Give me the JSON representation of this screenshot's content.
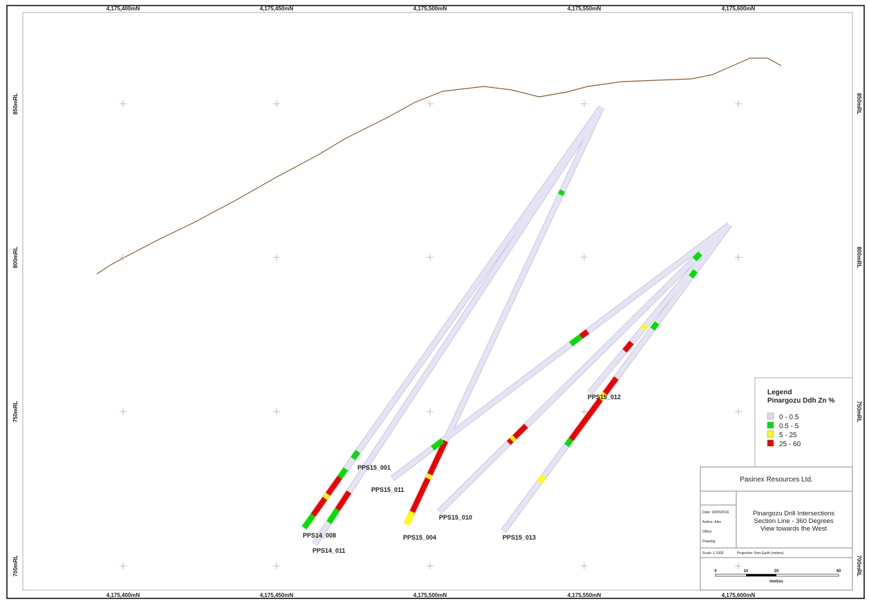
{
  "grid": {
    "top_labels": [
      "4,175,400mN",
      "4,175,450mN",
      "4,175,500mN",
      "4,175,550mN",
      "4,175,600mN"
    ],
    "bottom_labels": [
      "4,175,400mN",
      "4,175,450mN",
      "4,175,500mN",
      "4,175,550mN",
      "4,175,600mN"
    ],
    "left_labels": [
      "850mRL",
      "800mRL",
      "750mRL",
      "700mRL"
    ],
    "right_labels": [
      "850mRL",
      "800mRL",
      "750mRL",
      "700mRL"
    ]
  },
  "holes": [
    {
      "label": "PPS14_008"
    },
    {
      "label": "PPS14_011"
    },
    {
      "label": "PPS15_001"
    },
    {
      "label": "PPS15_004"
    },
    {
      "label": "PPS15_011"
    },
    {
      "label": "PPS15_010"
    },
    {
      "label": "PPS15_013"
    },
    {
      "label": "PPS15_012"
    }
  ],
  "legend": {
    "title": "Legend",
    "subtitle": "Pinargozu Ddh Zn %",
    "items": [
      {
        "label": "0 - 0.5",
        "color": "#dcdcf0"
      },
      {
        "label": "0.5 - 5",
        "color": "#00e000"
      },
      {
        "label": "5 - 25",
        "color": "#ffff00"
      },
      {
        "label": "25 - 60",
        "color": "#ee0000"
      }
    ]
  },
  "title_block": {
    "company": "Pasinex Resources Ltd.",
    "fields": [
      "Date: 18/05/2016",
      "Author: Alex",
      "Office:",
      "Drawing:"
    ],
    "title_lines": [
      "Pinargozu Drill Intersections",
      "Section Line - 360 Degrees",
      "View towards the West"
    ],
    "scale": "Scale: 1:1000",
    "projection": "Projection: Non-Earth (meters)",
    "scale_bar": [
      "0",
      "10",
      "20",
      "40"
    ],
    "scale_unit": "metres"
  }
}
